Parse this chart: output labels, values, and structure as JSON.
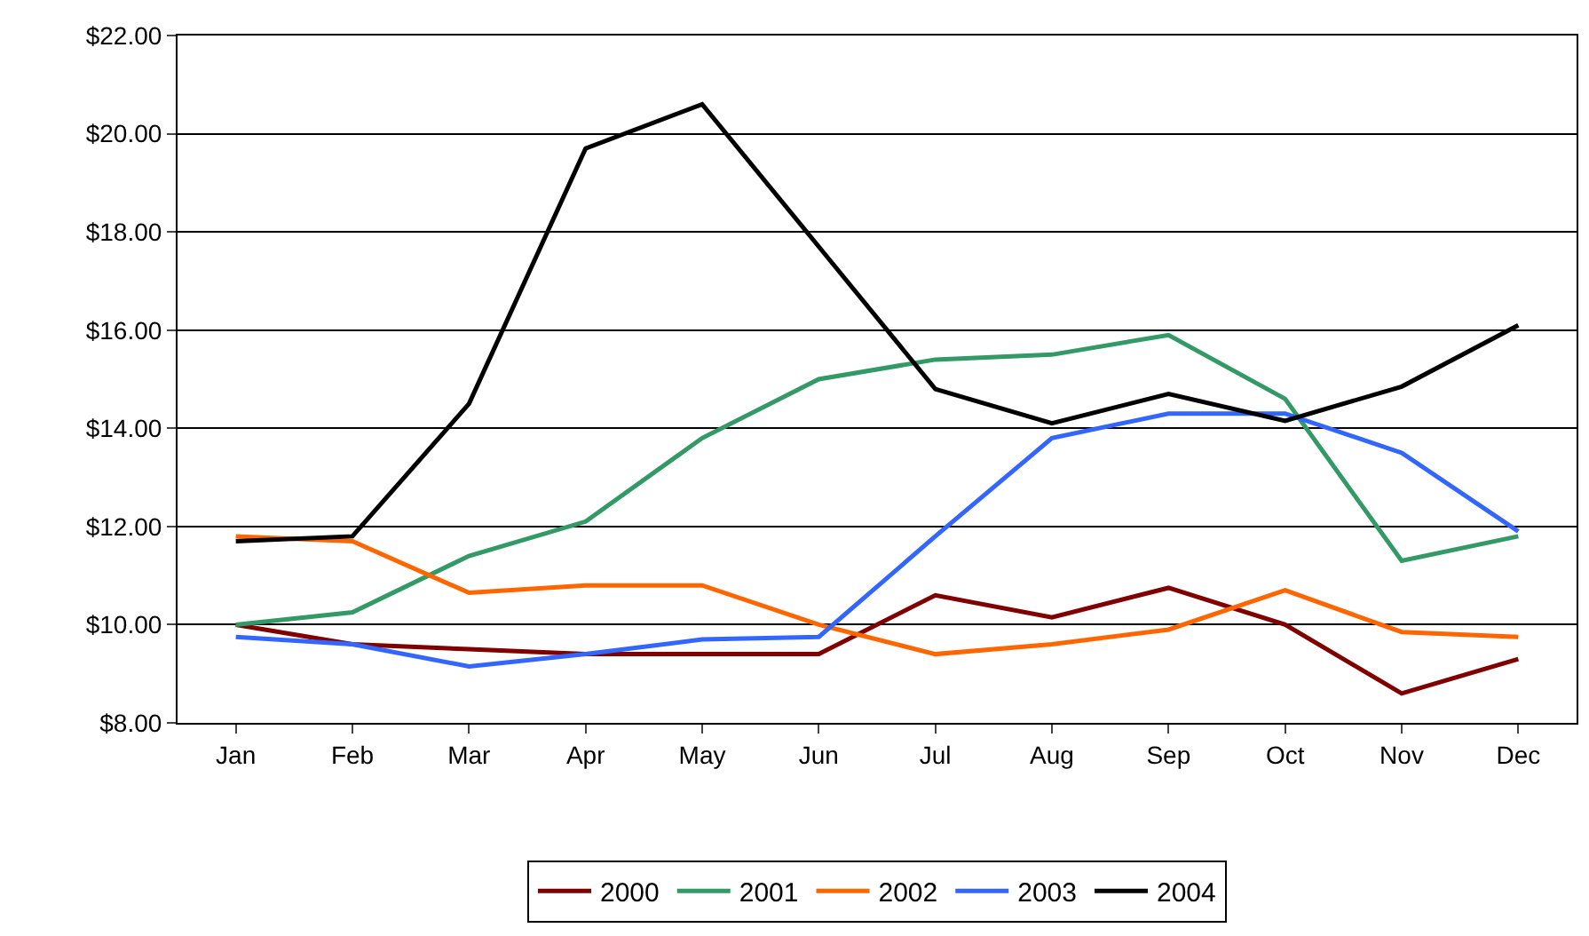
{
  "chart_data": {
    "type": "line",
    "categories": [
      "Jan",
      "Feb",
      "Mar",
      "Apr",
      "May",
      "Jun",
      "Jul",
      "Aug",
      "Sep",
      "Oct",
      "Nov",
      "Dec"
    ],
    "series": [
      {
        "name": "2000",
        "color": "#800000",
        "values": [
          10.0,
          9.6,
          9.5,
          9.4,
          9.4,
          9.4,
          10.6,
          10.15,
          10.75,
          10.0,
          8.6,
          9.3
        ]
      },
      {
        "name": "2001",
        "color": "#339966",
        "values": [
          10.0,
          10.25,
          11.4,
          12.1,
          13.8,
          15.0,
          15.4,
          15.5,
          15.9,
          14.6,
          11.3,
          11.8
        ]
      },
      {
        "name": "2002",
        "color": "#ff6600",
        "values": [
          11.8,
          11.7,
          10.65,
          10.8,
          10.8,
          10.0,
          9.4,
          9.6,
          9.9,
          10.7,
          9.85,
          9.75
        ]
      },
      {
        "name": "2003",
        "color": "#3366ff",
        "values": [
          9.75,
          9.6,
          9.15,
          9.4,
          9.7,
          9.75,
          11.8,
          13.8,
          14.3,
          14.3,
          13.5,
          11.9
        ]
      },
      {
        "name": "2004",
        "color": "#000000",
        "values": [
          11.7,
          11.8,
          14.5,
          19.7,
          20.6,
          17.7,
          14.8,
          14.1,
          14.7,
          14.15,
          14.85,
          16.1
        ]
      }
    ],
    "ylim": [
      8,
      22
    ],
    "yticks": [
      {
        "value": 8,
        "label": "$8.00"
      },
      {
        "value": 10,
        "label": "$10.00"
      },
      {
        "value": 12,
        "label": "$12.00"
      },
      {
        "value": 14,
        "label": "$14.00"
      },
      {
        "value": 16,
        "label": "$16.00"
      },
      {
        "value": 18,
        "label": "$18.00"
      },
      {
        "value": 20,
        "label": "$20.00"
      },
      {
        "value": 22,
        "label": "$22.00"
      }
    ],
    "grid": "y",
    "legend": "bottom",
    "marker": "none",
    "line_style": "solid"
  }
}
